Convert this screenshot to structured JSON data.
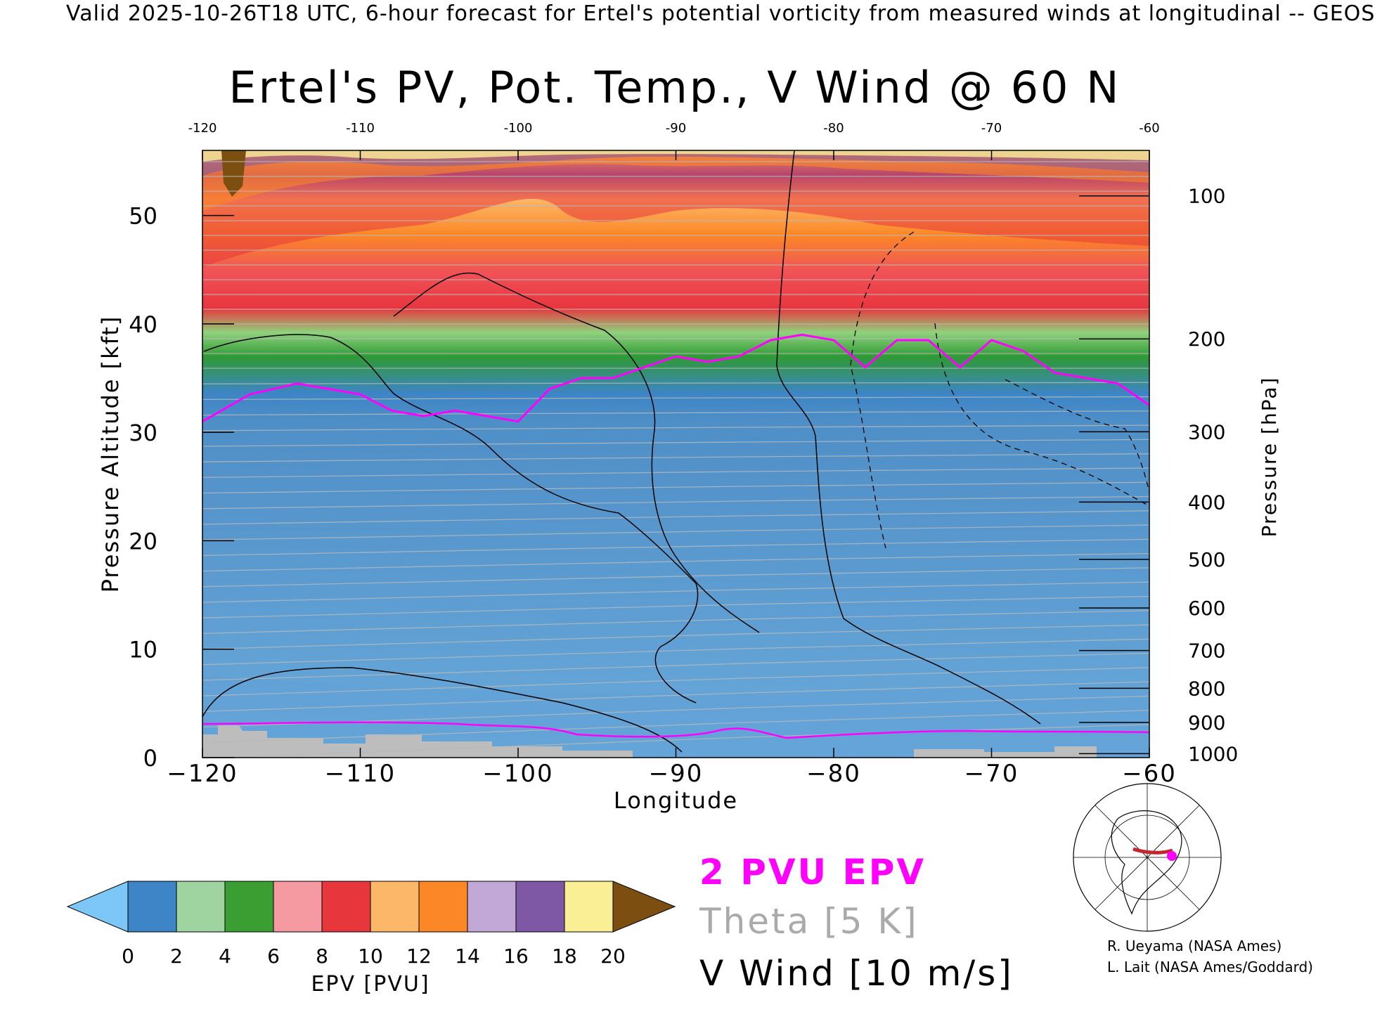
{
  "header": "Valid 2025-10-26T18 UTC, 6-hour forecast for Ertel's potential vorticity from measured winds at longitudinal -- GEOS",
  "chart_data": {
    "type": "heatmap",
    "title": "Ertel's PV, Pot. Temp., V Wind @ 60 N",
    "xlabel": "Longitude",
    "ylabel": "Pressure Altitude [kft]",
    "ylabel_right": "Pressure [hPa]",
    "xlim": [
      -120,
      -60
    ],
    "ylim": [
      0,
      56
    ],
    "x_ticks": [
      -120,
      -110,
      -100,
      -90,
      -80,
      -70,
      -60
    ],
    "y_ticks": [
      0,
      10,
      20,
      30,
      40,
      50
    ],
    "pressure_ticks": [
      100,
      200,
      300,
      400,
      500,
      600,
      700,
      800,
      900,
      1000
    ],
    "tropopause_2pvu_kft": [
      {
        "x": -120,
        "y": 31
      },
      {
        "x": -117,
        "y": 33.5
      },
      {
        "x": -114,
        "y": 34.5
      },
      {
        "x": -112,
        "y": 34
      },
      {
        "x": -110,
        "y": 33.5
      },
      {
        "x": -108,
        "y": 32
      },
      {
        "x": -106,
        "y": 31.5
      },
      {
        "x": -104,
        "y": 32
      },
      {
        "x": -102,
        "y": 31.5
      },
      {
        "x": -100,
        "y": 31
      },
      {
        "x": -98,
        "y": 34
      },
      {
        "x": -96,
        "y": 35
      },
      {
        "x": -94,
        "y": 35
      },
      {
        "x": -92,
        "y": 36
      },
      {
        "x": -90,
        "y": 37
      },
      {
        "x": -88,
        "y": 36.5
      },
      {
        "x": -86,
        "y": 37
      },
      {
        "x": -84,
        "y": 38.5
      },
      {
        "x": -82,
        "y": 39
      },
      {
        "x": -80,
        "y": 38.5
      },
      {
        "x": -78,
        "y": 36
      },
      {
        "x": -76,
        "y": 38.5
      },
      {
        "x": -74,
        "y": 38.5
      },
      {
        "x": -72,
        "y": 36
      },
      {
        "x": -70,
        "y": 38.5
      },
      {
        "x": -68,
        "y": 37.5
      },
      {
        "x": -66,
        "y": 35.5
      },
      {
        "x": -64,
        "y": 35
      },
      {
        "x": -62,
        "y": 34.5
      },
      {
        "x": -60,
        "y": 32.5
      }
    ],
    "colorbar": {
      "label": "EPV [PVU]",
      "ticks": [
        0,
        2,
        4,
        6,
        8,
        10,
        12,
        14,
        16,
        18,
        20
      ],
      "colors": [
        "#3d85c6",
        "#9fd4a0",
        "#3a9e33",
        "#f59aa0",
        "#e8363d",
        "#fdb768",
        "#fb8726",
        "#c2a8d6",
        "#7e57a5",
        "#fbef96"
      ],
      "under_color": "#7cc7f8",
      "over_color": "#7c4e10"
    },
    "legend": [
      {
        "label": "2 PVU EPV",
        "color": "#ff00ff"
      },
      {
        "label": "Theta [5 K]",
        "color": "#aaaaaa"
      },
      {
        "label": "V Wind [10 m/s]",
        "color": "#000000"
      }
    ]
  },
  "credits": [
    "R. Ueyama (NASA Ames)",
    "L. Lait (NASA Ames/Goddard)"
  ]
}
